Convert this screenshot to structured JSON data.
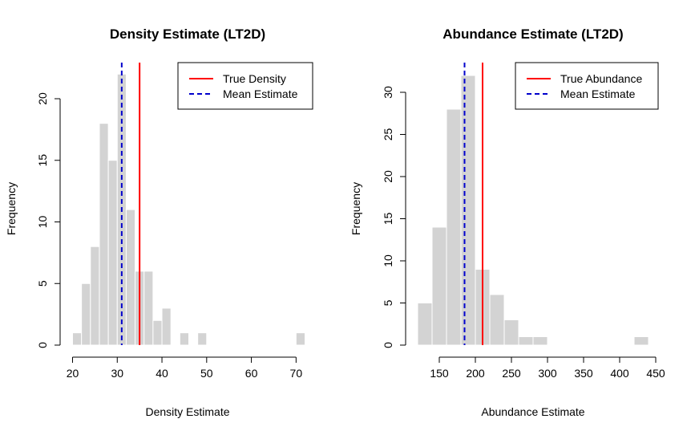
{
  "chart_data": [
    {
      "type": "histogram",
      "title": "Density Estimate (LT2D)",
      "xlabel": "Density Estimate",
      "ylabel": "Frequency",
      "bin_width": 2,
      "bins": [
        {
          "x0": 20,
          "x1": 22,
          "count": 1
        },
        {
          "x0": 22,
          "x1": 24,
          "count": 5
        },
        {
          "x0": 24,
          "x1": 26,
          "count": 8
        },
        {
          "x0": 26,
          "x1": 28,
          "count": 18
        },
        {
          "x0": 28,
          "x1": 30,
          "count": 15
        },
        {
          "x0": 30,
          "x1": 32,
          "count": 22
        },
        {
          "x0": 32,
          "x1": 34,
          "count": 11
        },
        {
          "x0": 34,
          "x1": 36,
          "count": 6
        },
        {
          "x0": 36,
          "x1": 38,
          "count": 6
        },
        {
          "x0": 38,
          "x1": 40,
          "count": 2
        },
        {
          "x0": 40,
          "x1": 42,
          "count": 3
        },
        {
          "x0": 42,
          "x1": 44,
          "count": 0
        },
        {
          "x0": 44,
          "x1": 46,
          "count": 1
        },
        {
          "x0": 46,
          "x1": 48,
          "count": 0
        },
        {
          "x0": 48,
          "x1": 50,
          "count": 1
        },
        {
          "x0": 50,
          "x1": 52,
          "count": 0
        },
        {
          "x0": 52,
          "x1": 54,
          "count": 0
        },
        {
          "x0": 54,
          "x1": 56,
          "count": 0
        },
        {
          "x0": 56,
          "x1": 58,
          "count": 0
        },
        {
          "x0": 58,
          "x1": 60,
          "count": 0
        },
        {
          "x0": 60,
          "x1": 62,
          "count": 0
        },
        {
          "x0": 62,
          "x1": 64,
          "count": 0
        },
        {
          "x0": 64,
          "x1": 66,
          "count": 0
        },
        {
          "x0": 66,
          "x1": 68,
          "count": 0
        },
        {
          "x0": 68,
          "x1": 70,
          "count": 0
        },
        {
          "x0": 70,
          "x1": 72,
          "count": 1
        }
      ],
      "xlim": [
        20,
        72
      ],
      "ylim": [
        0,
        22
      ],
      "xticks": [
        20,
        30,
        40,
        50,
        60,
        70
      ],
      "yticks": [
        0,
        5,
        10,
        15,
        20
      ],
      "vlines": [
        {
          "name": "True Density",
          "x": 35,
          "color": "#ff0000",
          "style": "solid"
        },
        {
          "name": "Mean Estimate",
          "x": 31,
          "color": "#0000cc",
          "style": "dashed"
        }
      ],
      "legend": "top-right",
      "bar_color": "#d3d3d3",
      "grid": false
    },
    {
      "type": "histogram",
      "title": "Abundance Estimate (LT2D)",
      "xlabel": "Abundance Estimate",
      "ylabel": "Frequency",
      "bin_width": 20,
      "bins": [
        {
          "x0": 120,
          "x1": 140,
          "count": 5
        },
        {
          "x0": 140,
          "x1": 160,
          "count": 14
        },
        {
          "x0": 160,
          "x1": 180,
          "count": 28
        },
        {
          "x0": 180,
          "x1": 200,
          "count": 32
        },
        {
          "x0": 200,
          "x1": 220,
          "count": 9
        },
        {
          "x0": 220,
          "x1": 240,
          "count": 6
        },
        {
          "x0": 240,
          "x1": 260,
          "count": 3
        },
        {
          "x0": 260,
          "x1": 280,
          "count": 1
        },
        {
          "x0": 280,
          "x1": 300,
          "count": 1
        },
        {
          "x0": 300,
          "x1": 320,
          "count": 0
        },
        {
          "x0": 320,
          "x1": 340,
          "count": 0
        },
        {
          "x0": 340,
          "x1": 360,
          "count": 0
        },
        {
          "x0": 360,
          "x1": 380,
          "count": 0
        },
        {
          "x0": 380,
          "x1": 400,
          "count": 0
        },
        {
          "x0": 400,
          "x1": 420,
          "count": 0
        },
        {
          "x0": 420,
          "x1": 440,
          "count": 1
        }
      ],
      "xlim": [
        120,
        440
      ],
      "ylim": [
        0,
        32
      ],
      "xticks": [
        150,
        200,
        250,
        300,
        350,
        400,
        450
      ],
      "yticks": [
        0,
        5,
        10,
        15,
        20,
        25,
        30
      ],
      "vlines": [
        {
          "name": "True Abundance",
          "x": 210,
          "color": "#ff0000",
          "style": "solid"
        },
        {
          "name": "Mean Estimate",
          "x": 185,
          "color": "#0000cc",
          "style": "dashed"
        }
      ],
      "legend": "top-right",
      "bar_color": "#d3d3d3",
      "grid": false
    }
  ]
}
